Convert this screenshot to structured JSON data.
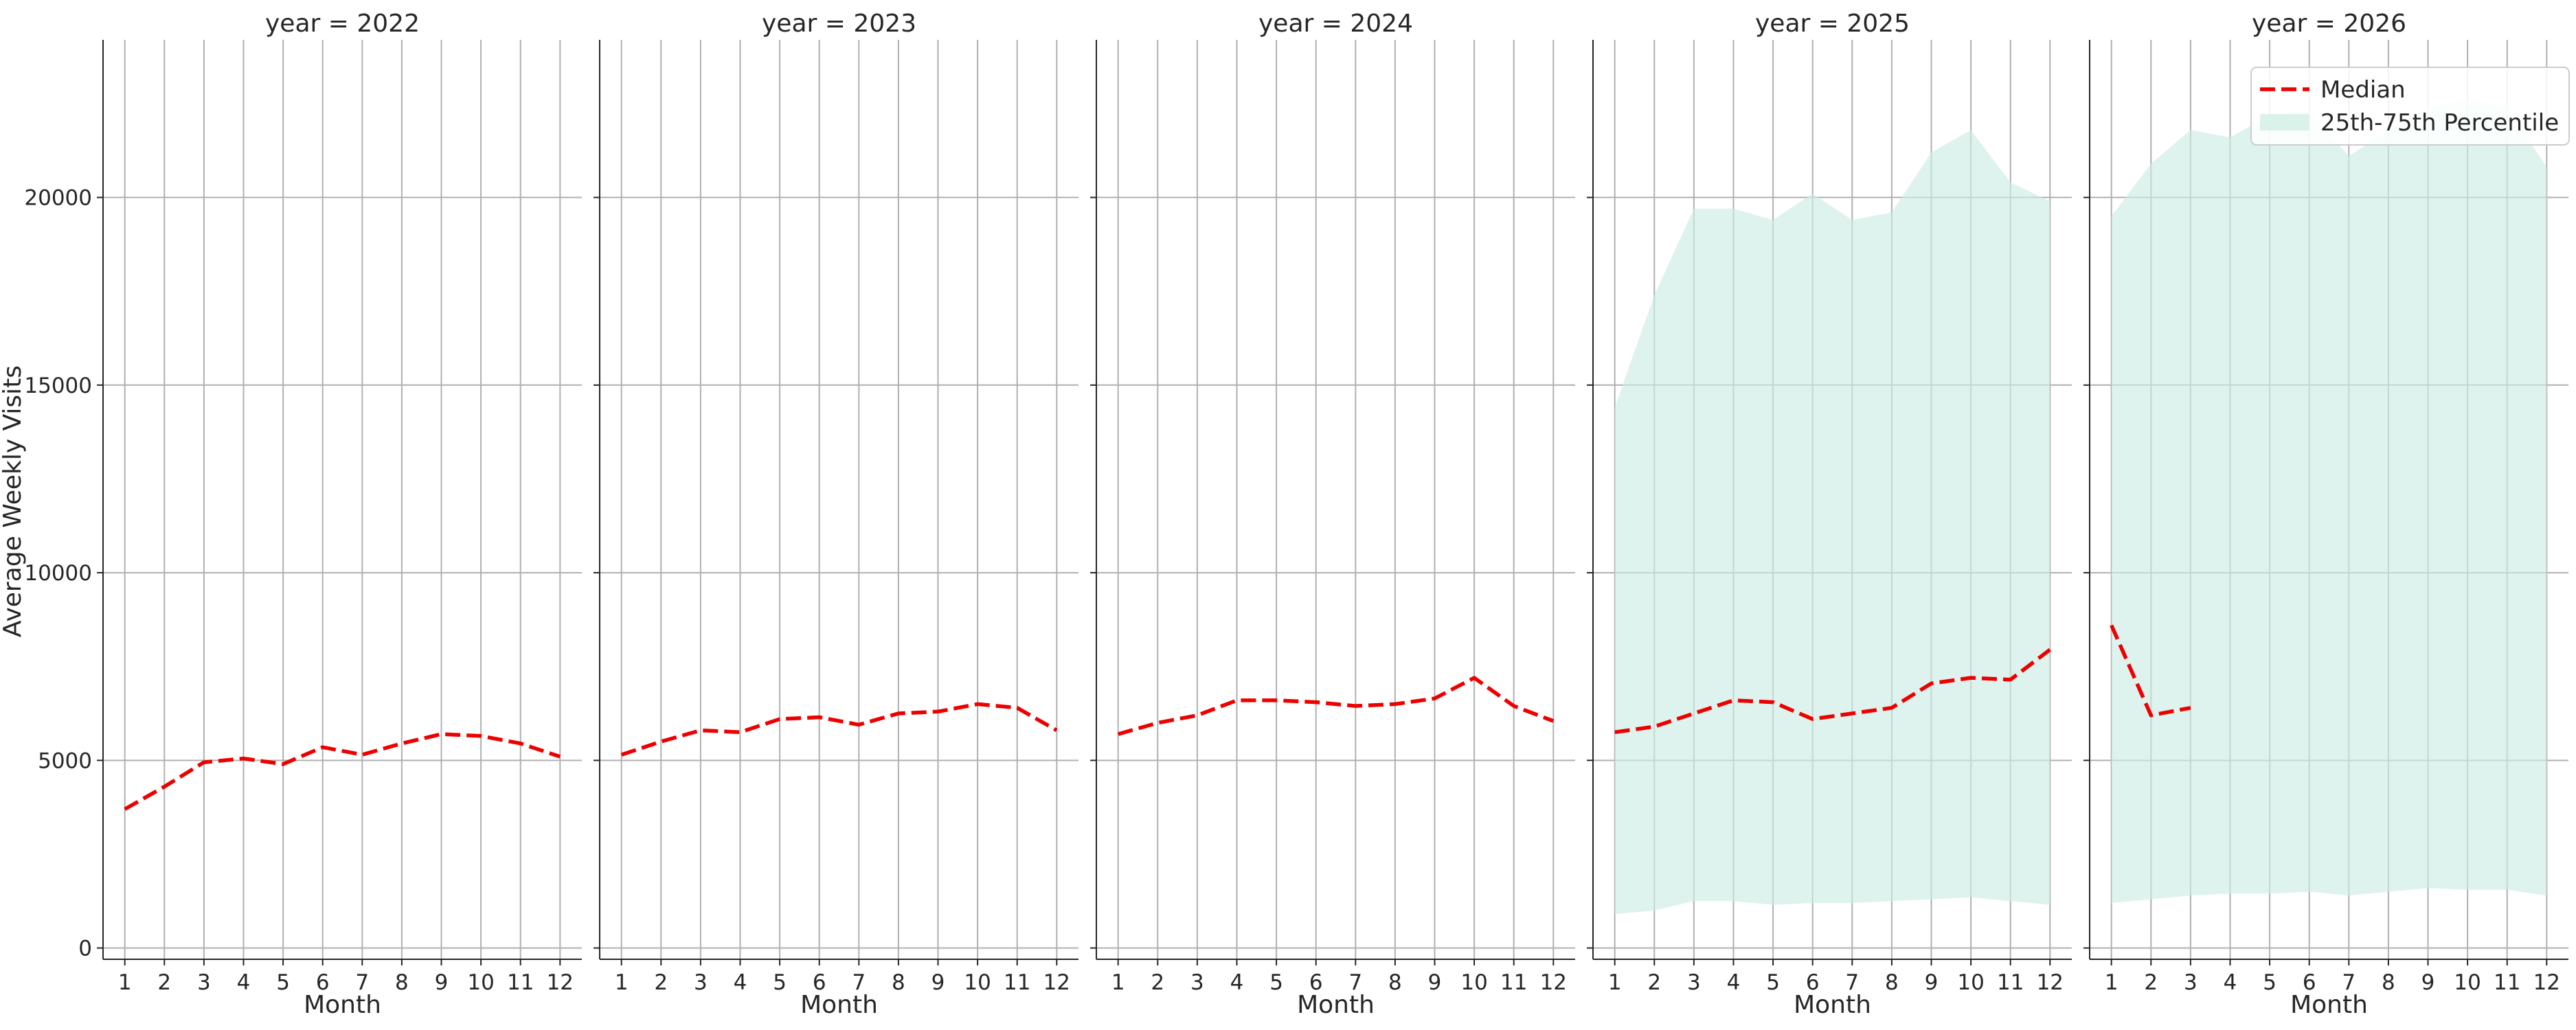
{
  "chart_data": {
    "type": "line",
    "ylabel": "Average Weekly Visits",
    "xlabel": "Month",
    "ylim": [
      -300,
      24200
    ],
    "xlim": [
      0.45,
      12.55
    ],
    "x_ticks": [
      1,
      2,
      3,
      4,
      5,
      6,
      7,
      8,
      9,
      10,
      11,
      12
    ],
    "y_ticks": [
      0,
      5000,
      10000,
      15000,
      20000
    ],
    "grid": true,
    "legend_position": "upper-right (in last panel)",
    "colors": {
      "median": "#ee0000",
      "band": "#cdece3"
    },
    "legend": {
      "median": "Median",
      "band": "25th-75th Percentile"
    },
    "panels": [
      {
        "title": "year = 2022",
        "median": {
          "x": [
            1,
            2,
            3,
            4,
            5,
            6,
            7,
            8,
            9,
            10,
            11,
            12
          ],
          "y": [
            3700,
            4300,
            4950,
            5050,
            4900,
            5350,
            5150,
            5450,
            5700,
            5650,
            5450,
            5100
          ]
        },
        "band": null
      },
      {
        "title": "year = 2023",
        "median": {
          "x": [
            1,
            2,
            3,
            4,
            5,
            6,
            7,
            8,
            9,
            10,
            11,
            12
          ],
          "y": [
            5150,
            5500,
            5800,
            5750,
            6100,
            6150,
            5950,
            6250,
            6300,
            6500,
            6400,
            5800
          ]
        },
        "band": null
      },
      {
        "title": "year = 2024",
        "median": {
          "x": [
            1,
            2,
            3,
            4,
            5,
            6,
            7,
            8,
            9,
            10,
            11,
            12
          ],
          "y": [
            5700,
            6000,
            6200,
            6600,
            6600,
            6550,
            6450,
            6500,
            6650,
            7200,
            6450,
            6050
          ]
        },
        "band": null
      },
      {
        "title": "year = 2025",
        "median": {
          "x": [
            1,
            2,
            3,
            4,
            5,
            6,
            7,
            8,
            9,
            10,
            11,
            12
          ],
          "y": [
            5750,
            5900,
            6250,
            6600,
            6550,
            6100,
            6250,
            6400,
            7050,
            7200,
            7150,
            7950
          ]
        },
        "band": {
          "x": [
            1,
            2,
            3,
            4,
            5,
            6,
            7,
            8,
            9,
            10,
            11,
            12
          ],
          "low": [
            900,
            1000,
            1250,
            1250,
            1150,
            1200,
            1200,
            1250,
            1300,
            1350,
            1250,
            1150
          ],
          "high": [
            14400,
            17400,
            19700,
            19700,
            19400,
            20100,
            19400,
            19600,
            21200,
            21800,
            20400,
            19900
          ]
        }
      },
      {
        "title": "year = 2026",
        "median": {
          "x": [
            1,
            2,
            3
          ],
          "y": [
            8600,
            6200,
            6400
          ]
        },
        "band": {
          "x": [
            1,
            2,
            3,
            4,
            5,
            6,
            7,
            8,
            9,
            10,
            11,
            12
          ],
          "low": [
            1200,
            1300,
            1400,
            1450,
            1450,
            1500,
            1400,
            1500,
            1600,
            1550,
            1550,
            1400
          ],
          "high": [
            19500,
            20900,
            21800,
            21600,
            22200,
            22300,
            21100,
            21800,
            22400,
            22600,
            22400,
            20800
          ]
        }
      }
    ]
  }
}
